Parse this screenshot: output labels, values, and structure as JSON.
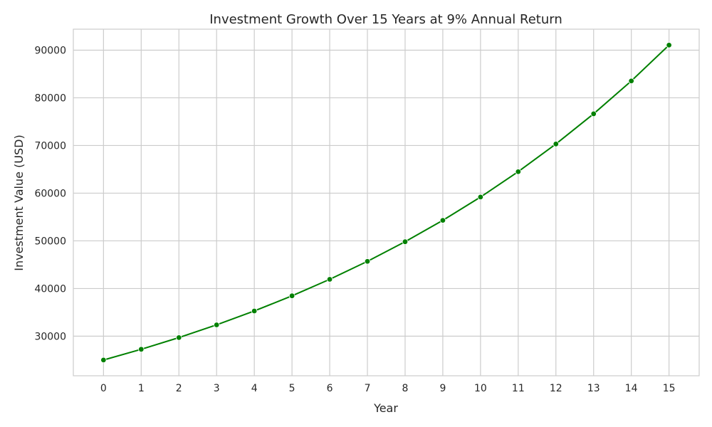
{
  "chart_data": {
    "type": "line",
    "title": "Investment Growth Over 15 Years at 9% Annual Return",
    "xlabel": "Year",
    "ylabel": "Investment Value (USD)",
    "x": [
      0,
      1,
      2,
      3,
      4,
      5,
      6,
      7,
      8,
      9,
      10,
      11,
      12,
      13,
      14,
      15
    ],
    "series": [
      {
        "values": [
          25000,
          27250,
          29703,
          32376,
          35289,
          38466,
          41927,
          45701,
          49814,
          54297,
          59184,
          64510,
          70316,
          76645,
          83543,
          91062
        ],
        "color": "#008000",
        "marker": "circle"
      }
    ],
    "xlim": [
      -0.8,
      15.8
    ],
    "ylim": [
      21700,
      94400
    ],
    "x_ticks": [
      "0",
      "1",
      "2",
      "3",
      "4",
      "5",
      "6",
      "7",
      "8",
      "9",
      "10",
      "11",
      "12",
      "13",
      "14",
      "15"
    ],
    "y_ticks": [
      "30000",
      "40000",
      "50000",
      "60000",
      "70000",
      "80000",
      "90000"
    ],
    "grid": true,
    "legend": "none"
  }
}
